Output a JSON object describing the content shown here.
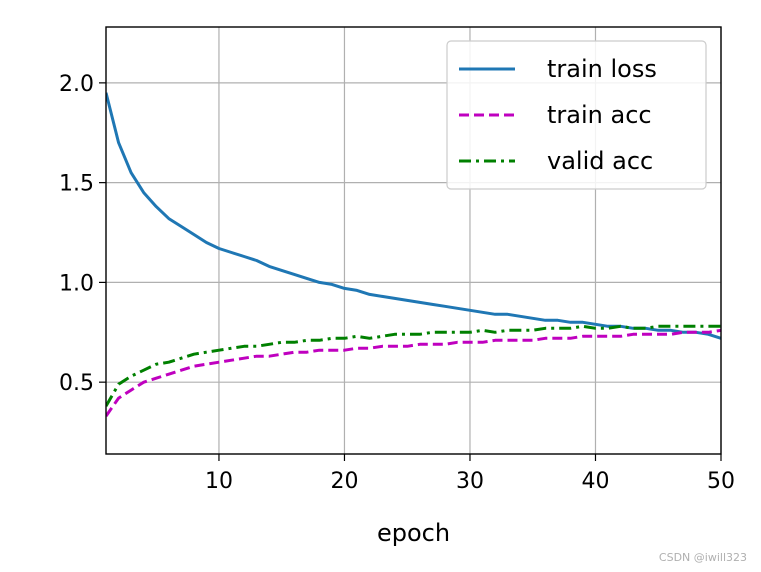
{
  "chart_data": {
    "type": "line",
    "xlabel": "epoch",
    "ylabel": "",
    "xlim": [
      1,
      50
    ],
    "ylim": [
      0.14,
      2.28
    ],
    "xticks": [
      "10",
      "20",
      "30",
      "40",
      "50"
    ],
    "yticks": [
      "0.5",
      "1.0",
      "1.5",
      "2.0"
    ],
    "grid": true,
    "legend_position": "top-right",
    "series": [
      {
        "name": "train loss",
        "color": "#1f77b4",
        "style": "solid",
        "x": [
          1,
          2,
          3,
          4,
          5,
          6,
          7,
          8,
          9,
          10,
          11,
          12,
          13,
          14,
          15,
          16,
          17,
          18,
          19,
          20,
          21,
          22,
          23,
          24,
          25,
          26,
          27,
          28,
          29,
          30,
          31,
          32,
          33,
          34,
          35,
          36,
          37,
          38,
          39,
          40,
          41,
          42,
          43,
          44,
          45,
          46,
          47,
          48,
          49,
          50
        ],
        "y": [
          1.95,
          1.7,
          1.55,
          1.45,
          1.38,
          1.32,
          1.28,
          1.24,
          1.2,
          1.17,
          1.15,
          1.13,
          1.11,
          1.08,
          1.06,
          1.04,
          1.02,
          1.0,
          0.99,
          0.97,
          0.96,
          0.94,
          0.93,
          0.92,
          0.91,
          0.9,
          0.89,
          0.88,
          0.87,
          0.86,
          0.85,
          0.84,
          0.84,
          0.83,
          0.82,
          0.81,
          0.81,
          0.8,
          0.8,
          0.79,
          0.78,
          0.78,
          0.77,
          0.77,
          0.76,
          0.76,
          0.75,
          0.75,
          0.74,
          0.72
        ]
      },
      {
        "name": "train acc",
        "color": "#bf00bf",
        "style": "dashed",
        "x": [
          1,
          2,
          3,
          4,
          5,
          6,
          7,
          8,
          9,
          10,
          11,
          12,
          13,
          14,
          15,
          16,
          17,
          18,
          19,
          20,
          21,
          22,
          23,
          24,
          25,
          26,
          27,
          28,
          29,
          30,
          31,
          32,
          33,
          34,
          35,
          36,
          37,
          38,
          39,
          40,
          41,
          42,
          43,
          44,
          45,
          46,
          47,
          48,
          49,
          50
        ],
        "y": [
          0.33,
          0.42,
          0.46,
          0.5,
          0.52,
          0.54,
          0.56,
          0.58,
          0.59,
          0.6,
          0.61,
          0.62,
          0.63,
          0.63,
          0.64,
          0.65,
          0.65,
          0.66,
          0.66,
          0.66,
          0.67,
          0.67,
          0.68,
          0.68,
          0.68,
          0.69,
          0.69,
          0.69,
          0.7,
          0.7,
          0.7,
          0.71,
          0.71,
          0.71,
          0.71,
          0.72,
          0.72,
          0.72,
          0.73,
          0.73,
          0.73,
          0.73,
          0.74,
          0.74,
          0.74,
          0.74,
          0.75,
          0.75,
          0.75,
          0.76
        ]
      },
      {
        "name": "valid acc",
        "color": "#008000",
        "style": "dashdot",
        "x": [
          1,
          2,
          3,
          4,
          5,
          6,
          7,
          8,
          9,
          10,
          11,
          12,
          13,
          14,
          15,
          16,
          17,
          18,
          19,
          20,
          21,
          22,
          23,
          24,
          25,
          26,
          27,
          28,
          29,
          30,
          31,
          32,
          33,
          34,
          35,
          36,
          37,
          38,
          39,
          40,
          41,
          42,
          43,
          44,
          45,
          46,
          47,
          48,
          49,
          50
        ],
        "y": [
          0.38,
          0.49,
          0.53,
          0.56,
          0.59,
          0.6,
          0.62,
          0.64,
          0.65,
          0.66,
          0.67,
          0.68,
          0.68,
          0.69,
          0.7,
          0.7,
          0.71,
          0.71,
          0.72,
          0.72,
          0.73,
          0.72,
          0.73,
          0.74,
          0.74,
          0.74,
          0.75,
          0.75,
          0.75,
          0.75,
          0.76,
          0.75,
          0.76,
          0.76,
          0.76,
          0.77,
          0.77,
          0.77,
          0.78,
          0.77,
          0.77,
          0.78,
          0.77,
          0.77,
          0.78,
          0.78,
          0.78,
          0.78,
          0.78,
          0.78
        ]
      }
    ]
  },
  "watermark": "CSDN @iwill323"
}
